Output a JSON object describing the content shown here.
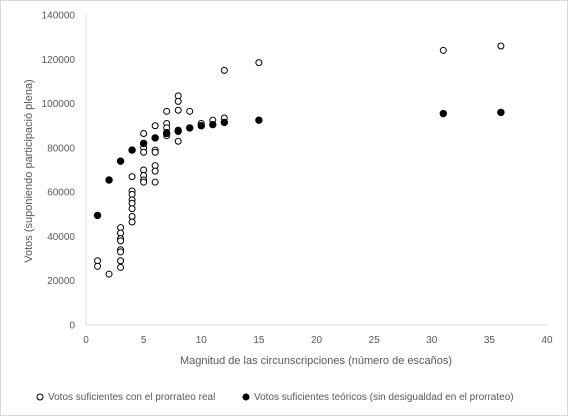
{
  "chart_data": {
    "type": "scatter",
    "title": "",
    "xlabel": "Magnitud de las circunscripciones (número de escaños)",
    "ylabel": "Votos (suponiendo participació plena)",
    "xlim": [
      0,
      40
    ],
    "ylim": [
      0,
      140000
    ],
    "x_ticks": [
      "0",
      "5",
      "10",
      "15",
      "20",
      "25",
      "30",
      "35",
      "40"
    ],
    "y_ticks": [
      "0",
      "20000",
      "40000",
      "60000",
      "80000",
      "100000",
      "120000",
      "140000"
    ],
    "grid": false,
    "legend_position": "bottom",
    "series": [
      {
        "name": "Votos suficientes con el prorrateo real",
        "marker": "hollow-circle",
        "color": "#000000",
        "points": [
          [
            1,
            29000
          ],
          [
            1,
            26500
          ],
          [
            2,
            23000
          ],
          [
            3,
            44000
          ],
          [
            3,
            41500
          ],
          [
            3,
            39000
          ],
          [
            3,
            38000
          ],
          [
            3,
            34000
          ],
          [
            3,
            33000
          ],
          [
            3,
            29000
          ],
          [
            3,
            26000
          ],
          [
            3,
            74000
          ],
          [
            4,
            79000
          ],
          [
            4,
            67000
          ],
          [
            4,
            60500
          ],
          [
            4,
            59000
          ],
          [
            4,
            56500
          ],
          [
            4,
            55000
          ],
          [
            4,
            52500
          ],
          [
            4,
            49000
          ],
          [
            4,
            46500
          ],
          [
            5,
            86500
          ],
          [
            5,
            80000
          ],
          [
            5,
            78000
          ],
          [
            5,
            70000
          ],
          [
            5,
            67500
          ],
          [
            5,
            65500
          ],
          [
            5,
            64500
          ],
          [
            6,
            90000
          ],
          [
            6,
            84500
          ],
          [
            6,
            79000
          ],
          [
            6,
            78000
          ],
          [
            6,
            72000
          ],
          [
            6,
            69500
          ],
          [
            6,
            64500
          ],
          [
            7,
            96500
          ],
          [
            7,
            91000
          ],
          [
            7,
            89000
          ],
          [
            7,
            87000
          ],
          [
            7,
            85500
          ],
          [
            8,
            103500
          ],
          [
            8,
            101000
          ],
          [
            8,
            97000
          ],
          [
            8,
            88000
          ],
          [
            8,
            83000
          ],
          [
            9,
            96500
          ],
          [
            10,
            91000
          ],
          [
            11,
            92500
          ],
          [
            12,
            115000
          ],
          [
            12,
            93500
          ],
          [
            15,
            118500
          ],
          [
            31,
            124000
          ],
          [
            36,
            126000
          ]
        ]
      },
      {
        "name": "Votos suficientes teóricos (sin desigualdad en el prorrateo)",
        "marker": "filled-circle",
        "color": "#000000",
        "points": [
          [
            1,
            49500
          ],
          [
            2,
            65500
          ],
          [
            3,
            74000
          ],
          [
            4,
            79000
          ],
          [
            5,
            82000
          ],
          [
            6,
            84500
          ],
          [
            7,
            86500
          ],
          [
            8,
            87500
          ],
          [
            9,
            89000
          ],
          [
            10,
            90000
          ],
          [
            11,
            90500
          ],
          [
            12,
            91500
          ],
          [
            15,
            92500
          ],
          [
            31,
            95500
          ],
          [
            36,
            96000
          ]
        ]
      }
    ]
  },
  "colors": {
    "axis": "#d9d9d9",
    "text": "#595959",
    "marker": "#000000"
  }
}
